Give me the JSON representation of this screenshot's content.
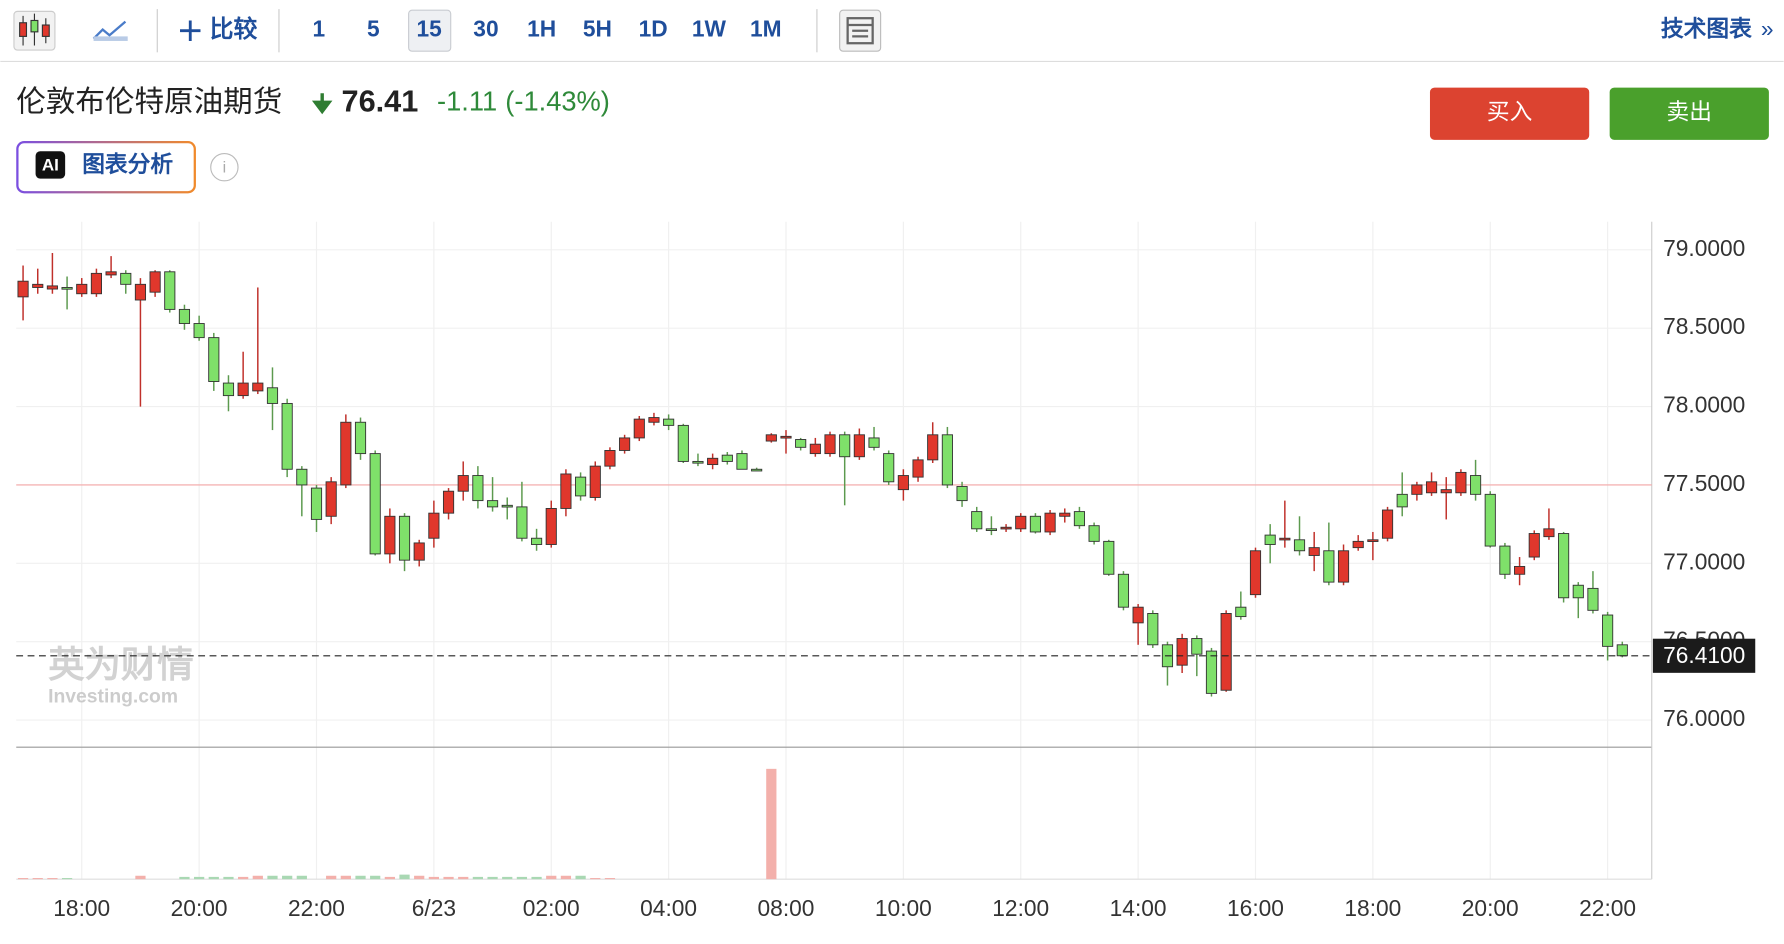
{
  "toolbar": {
    "compare": "比较",
    "intervals": [
      "1",
      "5",
      "15",
      "30",
      "1H",
      "5H",
      "1D",
      "1W",
      "1M"
    ],
    "tech_chart": "技术图表"
  },
  "header": {
    "title": "伦敦布伦特原油期货",
    "price": 76.41,
    "change": -1.11,
    "change_pct": "(-1.43%)",
    "buy": "买入",
    "sell": "卖出",
    "ai_badge": "AI",
    "ai_label": "图表分析"
  },
  "watermark": {
    "cn": "英为财情",
    "en": "Investing.com"
  },
  "chart_data": {
    "type": "candlestick",
    "up_color": "#e0372c",
    "down_color": "#7fe06a",
    "categories": [
      null,
      null,
      null,
      null,
      "18:00",
      null,
      null,
      null,
      null,
      null,
      null,
      null,
      "20:00",
      null,
      null,
      null,
      null,
      null,
      null,
      null,
      "22:00",
      null,
      null,
      null,
      null,
      null,
      null,
      null,
      "6/23",
      null,
      null,
      null,
      null,
      null,
      null,
      null,
      "02:00",
      null,
      null,
      null,
      null,
      null,
      null,
      null,
      "04:00",
      null,
      null,
      null,
      null,
      null,
      null,
      null,
      "08:00",
      null,
      null,
      null,
      null,
      null,
      null,
      null,
      "10:00",
      null,
      null,
      null,
      null,
      null,
      null,
      null,
      "12:00",
      null,
      null,
      null,
      null,
      null,
      null,
      null,
      "14:00",
      null,
      null,
      null,
      null,
      null,
      null,
      null,
      "16:00",
      null,
      null,
      null,
      null,
      null,
      null,
      null,
      "18:00",
      null,
      null,
      null,
      null,
      null,
      null,
      null,
      "20:00",
      null,
      null,
      null,
      null,
      null,
      null,
      null,
      "22:00",
      null
    ],
    "open": [
      78.7,
      78.76,
      78.75,
      78.76,
      78.72,
      78.72,
      78.84,
      78.85,
      78.68,
      78.73,
      78.86,
      78.62,
      78.53,
      78.44,
      78.15,
      78.07,
      78.1,
      78.12,
      78.02,
      77.6,
      77.48,
      77.3,
      77.5,
      77.9,
      77.7,
      77.06,
      77.3,
      77.02,
      77.16,
      77.32,
      77.46,
      77.56,
      77.4,
      77.37,
      77.36,
      77.16,
      77.12,
      77.35,
      77.55,
      77.42,
      77.62,
      77.72,
      77.8,
      77.9,
      77.92,
      77.88,
      77.65,
      77.63,
      77.69,
      77.7,
      77.6,
      77.78,
      77.8,
      77.79,
      77.7,
      77.7,
      77.82,
      77.68,
      77.8,
      77.7,
      77.47,
      77.55,
      77.66,
      77.82,
      77.49,
      77.33,
      77.22,
      77.22,
      77.22,
      77.3,
      77.2,
      77.3,
      77.33,
      77.24,
      77.14,
      76.93,
      76.62,
      76.68,
      76.48,
      76.35,
      76.52,
      76.44,
      76.19,
      76.72,
      76.8,
      77.18,
      77.15,
      77.15,
      77.05,
      77.08,
      76.88,
      77.1,
      77.14,
      77.16,
      77.44,
      77.44,
      77.45,
      77.45,
      77.45,
      77.56,
      77.44,
      77.11,
      76.93,
      77.04,
      77.17,
      77.19,
      76.86,
      76.84,
      76.67,
      76.48
    ],
    "high": [
      78.9,
      78.88,
      78.98,
      78.83,
      78.82,
      78.88,
      78.96,
      78.87,
      78.82,
      78.87,
      78.87,
      78.65,
      78.58,
      78.47,
      78.2,
      78.35,
      78.76,
      78.25,
      78.05,
      77.62,
      77.5,
      77.55,
      77.95,
      77.93,
      77.72,
      77.35,
      77.32,
      77.15,
      77.4,
      77.48,
      77.65,
      77.62,
      77.55,
      77.42,
      77.52,
      77.22,
      77.4,
      77.6,
      77.58,
      77.65,
      77.74,
      77.82,
      77.94,
      77.96,
      77.95,
      77.89,
      77.7,
      77.7,
      77.71,
      77.72,
      77.61,
      77.83,
      77.85,
      77.8,
      77.8,
      77.84,
      77.84,
      77.86,
      77.87,
      77.72,
      77.6,
      77.68,
      77.9,
      77.87,
      77.52,
      77.36,
      77.3,
      77.25,
      77.32,
      77.32,
      77.34,
      77.35,
      77.36,
      77.26,
      77.15,
      76.95,
      76.74,
      76.7,
      76.5,
      76.55,
      76.54,
      76.46,
      76.7,
      76.82,
      77.1,
      77.25,
      77.4,
      77.3,
      77.2,
      77.26,
      77.12,
      77.18,
      77.2,
      77.36,
      77.58,
      77.52,
      77.58,
      77.55,
      77.6,
      77.66,
      77.46,
      77.13,
      77.04,
      77.21,
      77.35,
      77.2,
      76.88,
      76.95,
      76.69,
      76.5
    ],
    "low": [
      78.55,
      78.72,
      78.72,
      78.62,
      78.7,
      78.7,
      78.82,
      78.72,
      78.0,
      78.7,
      78.6,
      78.49,
      78.42,
      78.1,
      77.97,
      78.05,
      78.08,
      77.85,
      77.55,
      77.3,
      77.2,
      77.25,
      77.48,
      77.66,
      77.05,
      77.0,
      76.95,
      76.98,
      77.1,
      77.28,
      77.4,
      77.35,
      77.33,
      77.28,
      77.14,
      77.08,
      77.1,
      77.3,
      77.4,
      77.4,
      77.6,
      77.7,
      77.78,
      77.88,
      77.85,
      77.64,
      77.62,
      77.6,
      77.63,
      77.6,
      77.59,
      77.77,
      77.7,
      77.72,
      77.68,
      77.68,
      77.37,
      77.66,
      77.72,
      77.5,
      77.4,
      77.52,
      77.64,
      77.48,
      77.36,
      77.2,
      77.18,
      77.2,
      77.2,
      77.19,
      77.18,
      77.26,
      77.22,
      77.12,
      76.92,
      76.7,
      76.48,
      76.46,
      76.22,
      76.3,
      76.28,
      76.15,
      76.18,
      76.64,
      76.78,
      77.0,
      77.1,
      77.05,
      76.95,
      76.86,
      76.86,
      77.08,
      77.02,
      77.14,
      77.3,
      77.4,
      77.43,
      77.28,
      77.43,
      77.4,
      77.1,
      76.9,
      76.86,
      77.02,
      77.15,
      76.75,
      76.65,
      76.68,
      76.38,
      76.4
    ],
    "close": [
      78.8,
      78.78,
      78.77,
      78.75,
      78.78,
      78.85,
      78.86,
      78.78,
      78.78,
      78.86,
      78.62,
      78.53,
      78.44,
      78.16,
      78.07,
      78.15,
      78.15,
      78.02,
      77.6,
      77.5,
      77.28,
      77.52,
      77.9,
      77.7,
      77.06,
      77.3,
      77.02,
      77.13,
      77.32,
      77.46,
      77.56,
      77.4,
      77.36,
      77.36,
      77.16,
      77.12,
      77.35,
      77.57,
      77.43,
      77.62,
      77.72,
      77.8,
      77.92,
      77.93,
      77.88,
      77.65,
      77.64,
      77.67,
      77.65,
      77.6,
      77.6,
      77.82,
      77.81,
      77.74,
      77.76,
      77.82,
      77.68,
      77.82,
      77.74,
      77.52,
      77.56,
      77.66,
      77.82,
      77.5,
      77.4,
      77.22,
      77.21,
      77.23,
      77.3,
      77.2,
      77.32,
      77.32,
      77.24,
      77.14,
      76.93,
      76.72,
      76.72,
      76.48,
      76.34,
      76.52,
      76.42,
      76.17,
      76.68,
      76.66,
      77.08,
      77.12,
      77.16,
      77.08,
      77.1,
      76.88,
      77.08,
      77.14,
      77.15,
      77.34,
      77.36,
      77.5,
      77.52,
      77.47,
      77.58,
      77.44,
      77.11,
      76.93,
      76.98,
      77.19,
      77.22,
      76.78,
      76.78,
      76.7,
      76.47,
      76.41
    ],
    "volume": [
      1,
      1,
      1,
      1,
      0,
      0,
      0,
      0,
      3,
      0,
      0,
      2,
      2,
      2,
      2,
      2,
      3,
      3,
      3,
      3,
      0,
      3,
      3,
      3,
      3,
      2,
      4,
      3,
      2,
      2,
      2,
      2,
      2,
      2,
      2,
      2,
      3,
      3,
      3,
      1,
      1,
      0,
      0,
      0,
      0,
      0,
      0,
      0,
      0,
      0,
      0,
      97,
      0,
      0,
      0,
      0,
      0,
      0,
      0,
      0,
      0,
      0,
      0,
      0,
      0,
      0,
      0,
      0,
      0,
      0,
      0,
      0,
      0,
      0,
      0,
      0,
      0,
      0,
      0,
      0,
      0,
      0,
      0,
      0,
      0,
      0,
      0,
      0,
      0,
      0,
      0,
      0,
      0,
      0,
      0,
      0,
      0,
      0,
      0,
      0,
      0,
      0,
      0,
      0,
      0,
      0,
      0,
      0,
      0,
      0
    ],
    "volume_ylim": [
      0,
      110
    ],
    "ylim": [
      75.8264,
      79.1791
    ],
    "yticks": [
      {
        "value": 76,
        "label": "76.0000"
      },
      {
        "value": 76.5,
        "label": "76.5000"
      },
      {
        "value": 77,
        "label": "77.0000"
      },
      {
        "value": 77.5,
        "label": "77.5000"
      },
      {
        "value": 78,
        "label": "78.0000"
      },
      {
        "value": 78.5,
        "label": "78.5000"
      },
      {
        "value": 79,
        "label": "79.0000"
      }
    ],
    "reference_line": 77.5,
    "last_price": {
      "value": 76.41,
      "label": "76.4100"
    },
    "grid": true
  }
}
